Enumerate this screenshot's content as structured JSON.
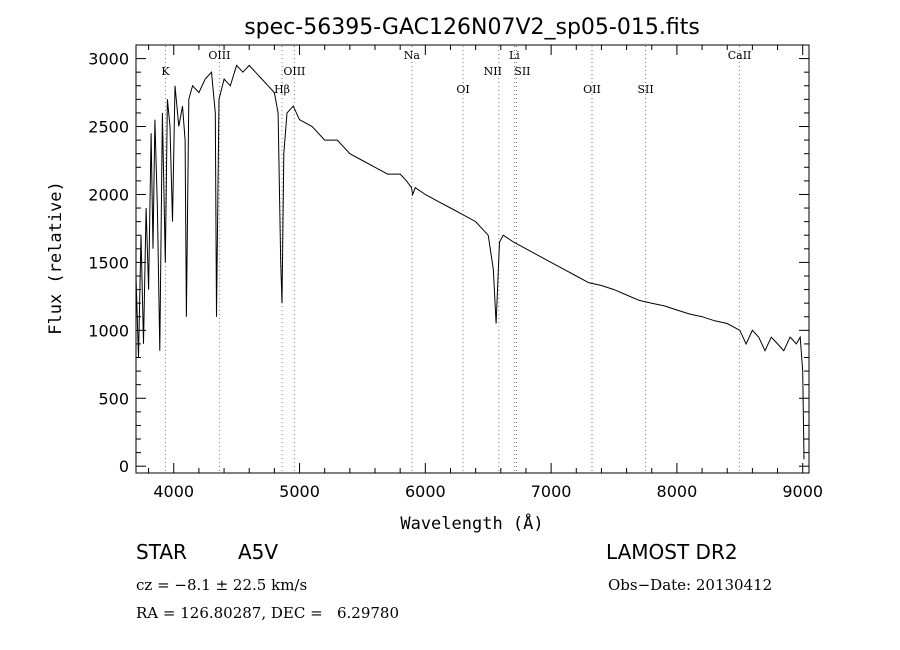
{
  "chart_data": {
    "type": "line",
    "title": "spec-56395-GAC126N07V2_sp05-015.fits",
    "xlabel": "Wavelength (Å)",
    "ylabel": "Flux (relative)",
    "xlim": [
      3700,
      9050
    ],
    "ylim": [
      -50,
      3100
    ],
    "xticks": [
      4000,
      5000,
      6000,
      7000,
      8000,
      9000
    ],
    "yticks": [
      0,
      500,
      1000,
      1500,
      2000,
      2500,
      3000
    ],
    "grid": false,
    "lines": [
      {
        "label": "K",
        "x": 3934
      },
      {
        "label": "OIII",
        "x": 4363
      },
      {
        "label": "Hβ",
        "x": 4861
      },
      {
        "label": "OIII",
        "x": 4959
      },
      {
        "label": "Na",
        "x": 5893
      },
      {
        "label": "OI",
        "x": 6300
      },
      {
        "label": "NII",
        "x": 6584
      },
      {
        "label": "Li",
        "x": 6708
      },
      {
        "label": "SII",
        "x": 6724
      },
      {
        "label": "OII",
        "x": 7325
      },
      {
        "label": "SII",
        "x": 7751
      },
      {
        "label": "CaII",
        "x": 8498
      }
    ],
    "series": [
      {
        "x": [
          3700,
          3720,
          3740,
          3760,
          3780,
          3800,
          3820,
          3835,
          3850,
          3870,
          3889,
          3910,
          3933,
          3950,
          3970,
          3990,
          4010,
          4040,
          4070,
          4090,
          4101,
          4120,
          4150,
          4200,
          4250,
          4300,
          4330,
          4340,
          4360,
          4400,
          4450,
          4500,
          4550,
          4600,
          4650,
          4700,
          4750,
          4800,
          4830,
          4850,
          4861,
          4875,
          4900,
          4950,
          5000,
          5100,
          5200,
          5300,
          5400,
          5500,
          5600,
          5700,
          5800,
          5850,
          5890,
          5900,
          5920,
          6000,
          6100,
          6200,
          6300,
          6400,
          6500,
          6540,
          6563,
          6590,
          6620,
          6700,
          6800,
          6900,
          7000,
          7100,
          7200,
          7300,
          7400,
          7500,
          7600,
          7700,
          7800,
          7900,
          8000,
          8100,
          8200,
          8300,
          8400,
          8500,
          8550,
          8600,
          8650,
          8700,
          8750,
          8800,
          8850,
          8900,
          8950,
          8980,
          9000,
          9010
        ],
        "y": [
          1400,
          800,
          1700,
          900,
          1900,
          1300,
          2450,
          1600,
          2550,
          1900,
          850,
          2600,
          1500,
          2700,
          2500,
          1800,
          2800,
          2500,
          2650,
          2400,
          1100,
          2700,
          2800,
          2750,
          2850,
          2900,
          2600,
          1100,
          2700,
          2850,
          2800,
          2950,
          2900,
          2950,
          2900,
          2850,
          2800,
          2750,
          2600,
          1500,
          1200,
          2300,
          2600,
          2650,
          2550,
          2500,
          2400,
          2400,
          2300,
          2250,
          2200,
          2150,
          2150,
          2100,
          2050,
          2000,
          2050,
          2000,
          1950,
          1900,
          1850,
          1800,
          1700,
          1450,
          1050,
          1650,
          1700,
          1650,
          1600,
          1550,
          1500,
          1450,
          1400,
          1350,
          1330,
          1300,
          1260,
          1220,
          1200,
          1180,
          1150,
          1120,
          1100,
          1070,
          1050,
          1000,
          900,
          1000,
          950,
          850,
          950,
          900,
          850,
          950,
          900,
          950,
          700,
          50
        ]
      }
    ]
  },
  "info": {
    "object_type": "STAR",
    "subclass": "A5V",
    "survey": "LAMOST DR2",
    "cz": "cz = −8.1 ± 22.5 km/s",
    "obs_date": "Obs−Date: 20130412",
    "coords": "RA = 126.80287, DEC =   6.29780"
  }
}
